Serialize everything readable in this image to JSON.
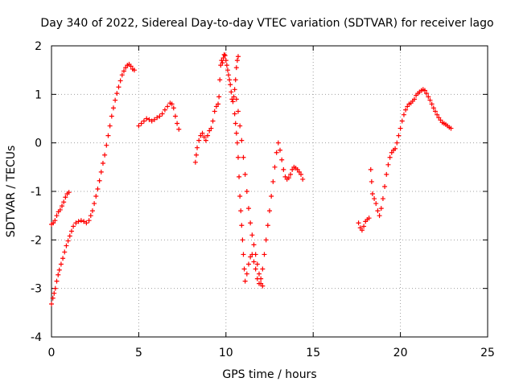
{
  "chart_data": {
    "type": "scatter",
    "title": "Day 340 of 2022, Sidereal Day-to-day VTEC variation (SDTVAR) for receiver lago",
    "xlabel": "GPS time / hours",
    "ylabel": "SDTVAR / TECUs",
    "xlim": [
      0,
      25
    ],
    "ylim": [
      -4,
      2
    ],
    "x_ticks": [
      0,
      5,
      10,
      15,
      20,
      25
    ],
    "y_ticks": [
      -4,
      -3,
      -2,
      -1,
      0,
      1,
      2
    ],
    "x_tick_labels": [
      "0",
      "5",
      "10",
      "15",
      "20",
      "25"
    ],
    "y_tick_labels": [
      "-4",
      "-3",
      "-2",
      "-1",
      "0",
      "1",
      "2"
    ],
    "grid": true,
    "marker": "+",
    "color": "#ff0000",
    "series": [
      {
        "name": "SDTVAR",
        "points": [
          [
            0.0,
            -1.68
          ],
          [
            0.1,
            -1.65
          ],
          [
            0.2,
            -1.6
          ],
          [
            0.3,
            -1.5
          ],
          [
            0.4,
            -1.42
          ],
          [
            0.5,
            -1.38
          ],
          [
            0.6,
            -1.3
          ],
          [
            0.7,
            -1.22
          ],
          [
            0.8,
            -1.12
          ],
          [
            0.9,
            -1.05
          ],
          [
            1.0,
            -1.02
          ],
          [
            0.0,
            -3.32
          ],
          [
            0.08,
            -3.2
          ],
          [
            0.15,
            -3.1
          ],
          [
            0.22,
            -3.0
          ],
          [
            0.3,
            -2.85
          ],
          [
            0.38,
            -2.72
          ],
          [
            0.45,
            -2.62
          ],
          [
            0.55,
            -2.5
          ],
          [
            0.65,
            -2.38
          ],
          [
            0.75,
            -2.25
          ],
          [
            0.85,
            -2.12
          ],
          [
            0.95,
            -2.02
          ],
          [
            1.05,
            -1.92
          ],
          [
            1.15,
            -1.82
          ],
          [
            1.25,
            -1.72
          ],
          [
            1.4,
            -1.65
          ],
          [
            1.55,
            -1.62
          ],
          [
            1.7,
            -1.6
          ],
          [
            1.85,
            -1.62
          ],
          [
            2.0,
            -1.65
          ],
          [
            2.15,
            -1.6
          ],
          [
            2.25,
            -1.5
          ],
          [
            2.35,
            -1.4
          ],
          [
            2.45,
            -1.25
          ],
          [
            2.55,
            -1.1
          ],
          [
            2.65,
            -0.95
          ],
          [
            2.75,
            -0.78
          ],
          [
            2.85,
            -0.6
          ],
          [
            2.95,
            -0.42
          ],
          [
            3.05,
            -0.25
          ],
          [
            3.15,
            -0.05
          ],
          [
            3.25,
            0.15
          ],
          [
            3.35,
            0.35
          ],
          [
            3.45,
            0.55
          ],
          [
            3.55,
            0.72
          ],
          [
            3.65,
            0.88
          ],
          [
            3.75,
            1.02
          ],
          [
            3.85,
            1.15
          ],
          [
            3.95,
            1.28
          ],
          [
            4.05,
            1.4
          ],
          [
            4.15,
            1.48
          ],
          [
            4.25,
            1.55
          ],
          [
            4.35,
            1.6
          ],
          [
            4.45,
            1.62
          ],
          [
            4.55,
            1.58
          ],
          [
            4.65,
            1.52
          ],
          [
            4.75,
            1.5
          ],
          [
            5.0,
            0.35
          ],
          [
            5.15,
            0.4
          ],
          [
            5.3,
            0.45
          ],
          [
            5.45,
            0.5
          ],
          [
            5.6,
            0.48
          ],
          [
            5.75,
            0.45
          ],
          [
            5.9,
            0.48
          ],
          [
            6.05,
            0.52
          ],
          [
            6.2,
            0.55
          ],
          [
            6.35,
            0.6
          ],
          [
            6.5,
            0.68
          ],
          [
            6.65,
            0.75
          ],
          [
            6.8,
            0.82
          ],
          [
            6.9,
            0.8
          ],
          [
            7.0,
            0.72
          ],
          [
            7.1,
            0.55
          ],
          [
            7.2,
            0.4
          ],
          [
            7.3,
            0.28
          ],
          [
            8.25,
            -0.4
          ],
          [
            8.3,
            -0.25
          ],
          [
            8.35,
            -0.1
          ],
          [
            8.45,
            0.05
          ],
          [
            8.55,
            0.15
          ],
          [
            8.65,
            0.2
          ],
          [
            8.75,
            0.12
          ],
          [
            8.85,
            0.05
          ],
          [
            8.95,
            0.15
          ],
          [
            9.05,
            0.25
          ],
          [
            9.15,
            0.3
          ],
          [
            9.25,
            0.45
          ],
          [
            9.35,
            0.65
          ],
          [
            9.45,
            0.75
          ],
          [
            9.55,
            0.8
          ],
          [
            9.6,
            0.95
          ],
          [
            9.65,
            1.3
          ],
          [
            9.7,
            1.6
          ],
          [
            9.75,
            1.7
          ],
          [
            9.8,
            1.65
          ],
          [
            9.85,
            1.75
          ],
          [
            9.9,
            1.82
          ],
          [
            9.95,
            1.8
          ],
          [
            10.0,
            1.7
          ],
          [
            10.05,
            1.6
          ],
          [
            10.1,
            1.5
          ],
          [
            10.15,
            1.4
          ],
          [
            10.2,
            1.3
          ],
          [
            10.25,
            1.2
          ],
          [
            10.3,
            1.05
          ],
          [
            10.35,
            0.9
          ],
          [
            10.4,
            0.85
          ],
          [
            10.45,
            0.95
          ],
          [
            10.5,
            1.1
          ],
          [
            10.55,
            1.3
          ],
          [
            10.6,
            1.55
          ],
          [
            10.65,
            1.7
          ],
          [
            10.7,
            1.78
          ],
          [
            10.5,
            0.6
          ],
          [
            10.55,
            0.4
          ],
          [
            10.6,
            0.2
          ],
          [
            10.65,
            0.0
          ],
          [
            10.7,
            -0.3
          ],
          [
            10.75,
            -0.7
          ],
          [
            10.8,
            -1.1
          ],
          [
            10.85,
            -1.4
          ],
          [
            10.9,
            -1.7
          ],
          [
            10.95,
            -2.0
          ],
          [
            11.0,
            -2.3
          ],
          [
            11.05,
            -2.6
          ],
          [
            11.1,
            -2.85
          ],
          [
            11.2,
            -2.7
          ],
          [
            11.3,
            -2.5
          ],
          [
            11.4,
            -2.35
          ],
          [
            11.5,
            -2.3
          ],
          [
            11.6,
            -2.45
          ],
          [
            11.7,
            -2.6
          ],
          [
            11.8,
            -2.8
          ],
          [
            11.9,
            -2.9
          ],
          [
            12.0,
            -2.8
          ],
          [
            12.1,
            -2.6
          ],
          [
            12.2,
            -2.3
          ],
          [
            12.3,
            -2.0
          ],
          [
            12.4,
            -1.7
          ],
          [
            12.5,
            -1.4
          ],
          [
            12.6,
            -1.1
          ],
          [
            12.7,
            -0.8
          ],
          [
            12.8,
            -0.5
          ],
          [
            12.9,
            -0.2
          ],
          [
            13.0,
            0.0
          ],
          [
            13.1,
            -0.15
          ],
          [
            13.2,
            -0.35
          ],
          [
            13.3,
            -0.55
          ],
          [
            13.4,
            -0.7
          ],
          [
            13.5,
            -0.75
          ],
          [
            13.6,
            -0.72
          ],
          [
            13.7,
            -0.65
          ],
          [
            13.8,
            -0.55
          ],
          [
            13.9,
            -0.5
          ],
          [
            14.0,
            -0.52
          ],
          [
            14.1,
            -0.55
          ],
          [
            14.2,
            -0.6
          ],
          [
            14.3,
            -0.65
          ],
          [
            14.4,
            -0.75
          ],
          [
            10.6,
            0.9
          ],
          [
            10.7,
            0.65
          ],
          [
            10.8,
            0.35
          ],
          [
            10.9,
            0.05
          ],
          [
            11.0,
            -0.3
          ],
          [
            11.1,
            -0.65
          ],
          [
            11.2,
            -1.0
          ],
          [
            11.3,
            -1.35
          ],
          [
            11.4,
            -1.65
          ],
          [
            11.5,
            -1.9
          ],
          [
            11.6,
            -2.1
          ],
          [
            11.7,
            -2.3
          ],
          [
            11.8,
            -2.5
          ],
          [
            11.9,
            -2.7
          ],
          [
            12.0,
            -2.9
          ],
          [
            12.1,
            -2.95
          ],
          [
            17.6,
            -1.65
          ],
          [
            17.7,
            -1.75
          ],
          [
            17.8,
            -1.8
          ],
          [
            17.9,
            -1.72
          ],
          [
            18.0,
            -1.62
          ],
          [
            18.1,
            -1.58
          ],
          [
            18.2,
            -1.55
          ],
          [
            18.3,
            -0.55
          ],
          [
            18.35,
            -0.8
          ],
          [
            18.4,
            -1.05
          ],
          [
            18.5,
            -1.15
          ],
          [
            18.6,
            -1.25
          ],
          [
            18.7,
            -1.4
          ],
          [
            18.8,
            -1.5
          ],
          [
            18.9,
            -1.35
          ],
          [
            19.0,
            -1.15
          ],
          [
            19.1,
            -0.9
          ],
          [
            19.2,
            -0.65
          ],
          [
            19.3,
            -0.45
          ],
          [
            19.4,
            -0.3
          ],
          [
            19.5,
            -0.2
          ],
          [
            19.6,
            -0.15
          ],
          [
            19.7,
            -0.12
          ],
          [
            19.8,
            0.0
          ],
          [
            19.9,
            0.15
          ],
          [
            20.0,
            0.3
          ],
          [
            20.1,
            0.45
          ],
          [
            20.2,
            0.58
          ],
          [
            20.3,
            0.68
          ],
          [
            20.4,
            0.75
          ],
          [
            20.5,
            0.8
          ],
          [
            20.6,
            0.82
          ],
          [
            20.7,
            0.86
          ],
          [
            20.8,
            0.9
          ],
          [
            20.9,
            0.98
          ],
          [
            21.0,
            1.02
          ],
          [
            21.1,
            1.05
          ],
          [
            21.2,
            1.08
          ],
          [
            21.3,
            1.1
          ],
          [
            21.4,
            1.08
          ],
          [
            21.5,
            1.02
          ],
          [
            21.6,
            0.95
          ],
          [
            21.7,
            0.88
          ],
          [
            21.8,
            0.8
          ],
          [
            21.9,
            0.72
          ],
          [
            22.0,
            0.65
          ],
          [
            22.1,
            0.58
          ],
          [
            22.2,
            0.52
          ],
          [
            22.3,
            0.47
          ],
          [
            22.4,
            0.42
          ],
          [
            22.5,
            0.4
          ],
          [
            22.6,
            0.38
          ],
          [
            22.7,
            0.35
          ],
          [
            22.8,
            0.32
          ],
          [
            22.9,
            0.3
          ]
        ]
      }
    ]
  }
}
